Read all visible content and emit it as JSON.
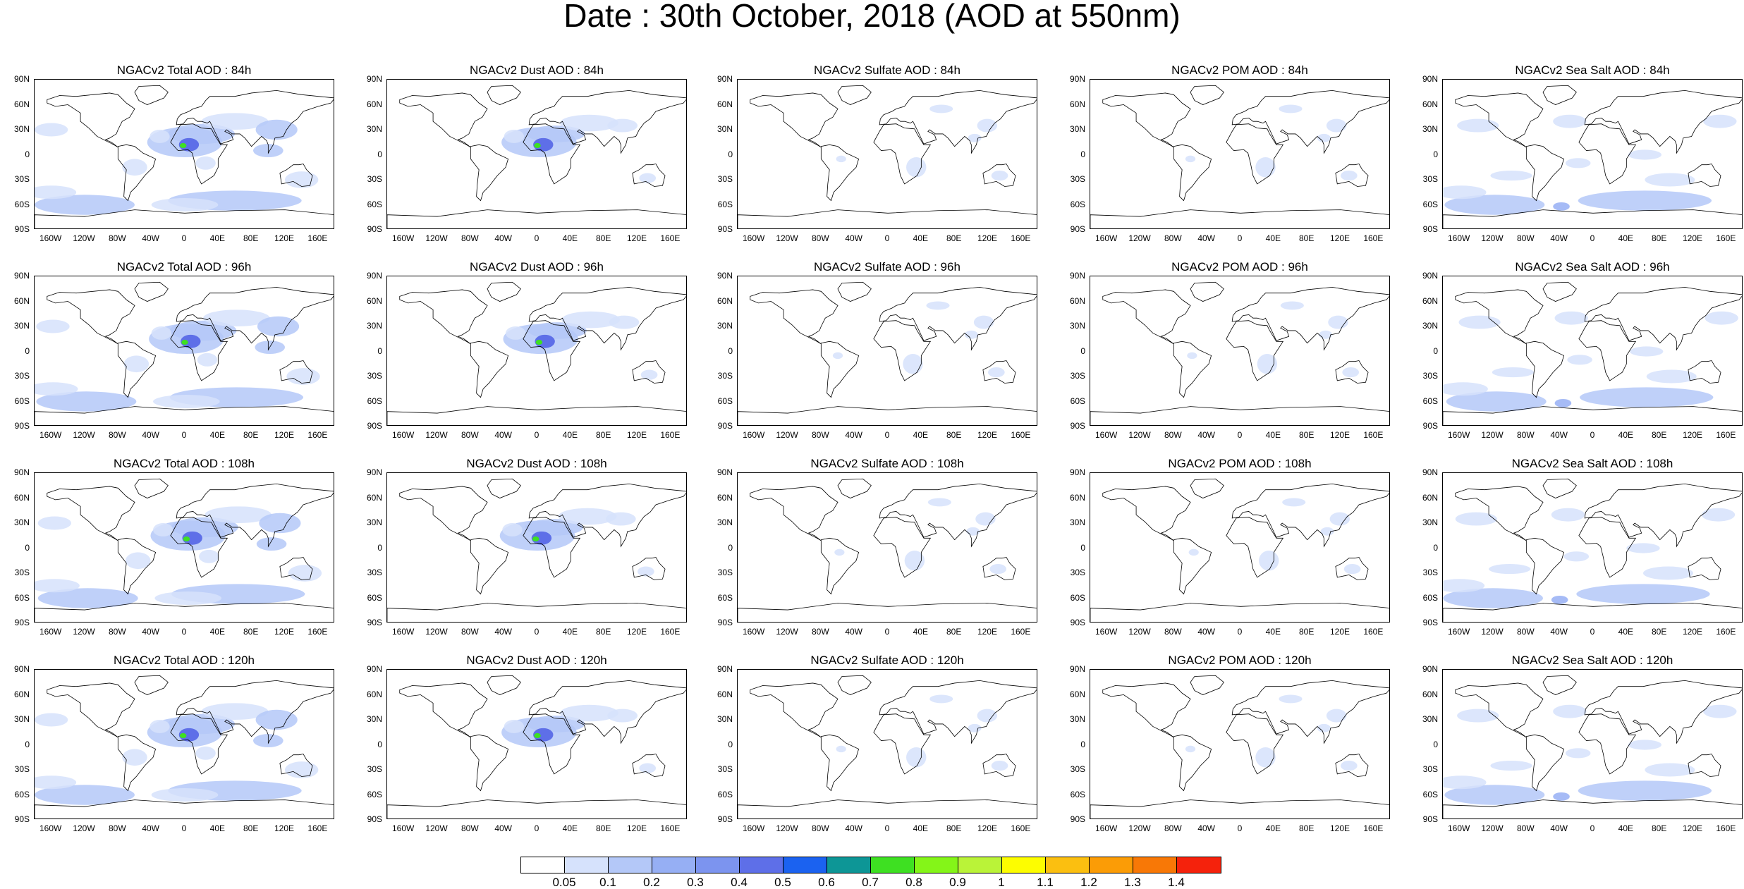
{
  "title": "Date : 30th October, 2018 (AOD at 550nm)",
  "lat_ticks": [
    "90N",
    "60N",
    "30N",
    "0",
    "30S",
    "60S",
    "90S"
  ],
  "lon_ticks": [
    "160W",
    "120W",
    "80W",
    "40W",
    "0",
    "40E",
    "80E",
    "120E",
    "160E"
  ],
  "columns": [
    {
      "species": "Total",
      "intensity": "high",
      "color_hint": "#96b3f5"
    },
    {
      "species": "Dust",
      "intensity": "dust",
      "color_hint": "#7895f5"
    },
    {
      "species": "Sulfate",
      "intensity": "low",
      "color_hint": "#c8d8fb"
    },
    {
      "species": "POM",
      "intensity": "low",
      "color_hint": "#c8d8fb"
    },
    {
      "species": "Sea Salt",
      "intensity": "ocean",
      "color_hint": "#a8c0f6"
    }
  ],
  "panel_titles": [
    [
      "NGACv2 Total AOD : 84h",
      "NGACv2 Dust AOD : 84h",
      "NGACv2 Sulfate AOD : 84h",
      "NGACv2 POM AOD : 84h",
      "NGACv2 Sea Salt AOD : 84h"
    ],
    [
      "NGACv2 Total AOD : 96h",
      "NGACv2 Dust AOD : 96h",
      "NGACv2 Sulfate AOD : 96h",
      "NGACv2 POM AOD : 96h",
      "NGACv2 Sea Salt AOD : 96h"
    ],
    [
      "NGACv2 Total AOD : 108h",
      "NGACv2 Dust AOD : 108h",
      "NGACv2 Sulfate AOD : 108h",
      "NGACv2 POM AOD : 108h",
      "NGACv2 Sea Salt AOD : 108h"
    ],
    [
      "NGACv2 Total AOD : 120h",
      "NGACv2 Dust AOD : 120h",
      "NGACv2 Sulfate AOD : 120h",
      "NGACv2 POM AOD : 120h",
      "NGACv2 Sea Salt  AOD : 120h"
    ]
  ],
  "colorbar": {
    "labels": [
      "0.05",
      "0.1",
      "0.2",
      "0.3",
      "0.4",
      "0.5",
      "0.6",
      "0.7",
      "0.8",
      "0.9",
      "1",
      "1.1",
      "1.2",
      "1.3",
      "1.4"
    ],
    "colors": [
      "#ffffff",
      "#d6e2fc",
      "#b4c8f8",
      "#96aff4",
      "#7c94ef",
      "#5e6fe8",
      "#1b62f0",
      "#0d9696",
      "#3ee022",
      "#84f518",
      "#baf338",
      "#fdfd00",
      "#fbbf10",
      "#fb9c06",
      "#f87806",
      "#f5220c"
    ]
  }
}
